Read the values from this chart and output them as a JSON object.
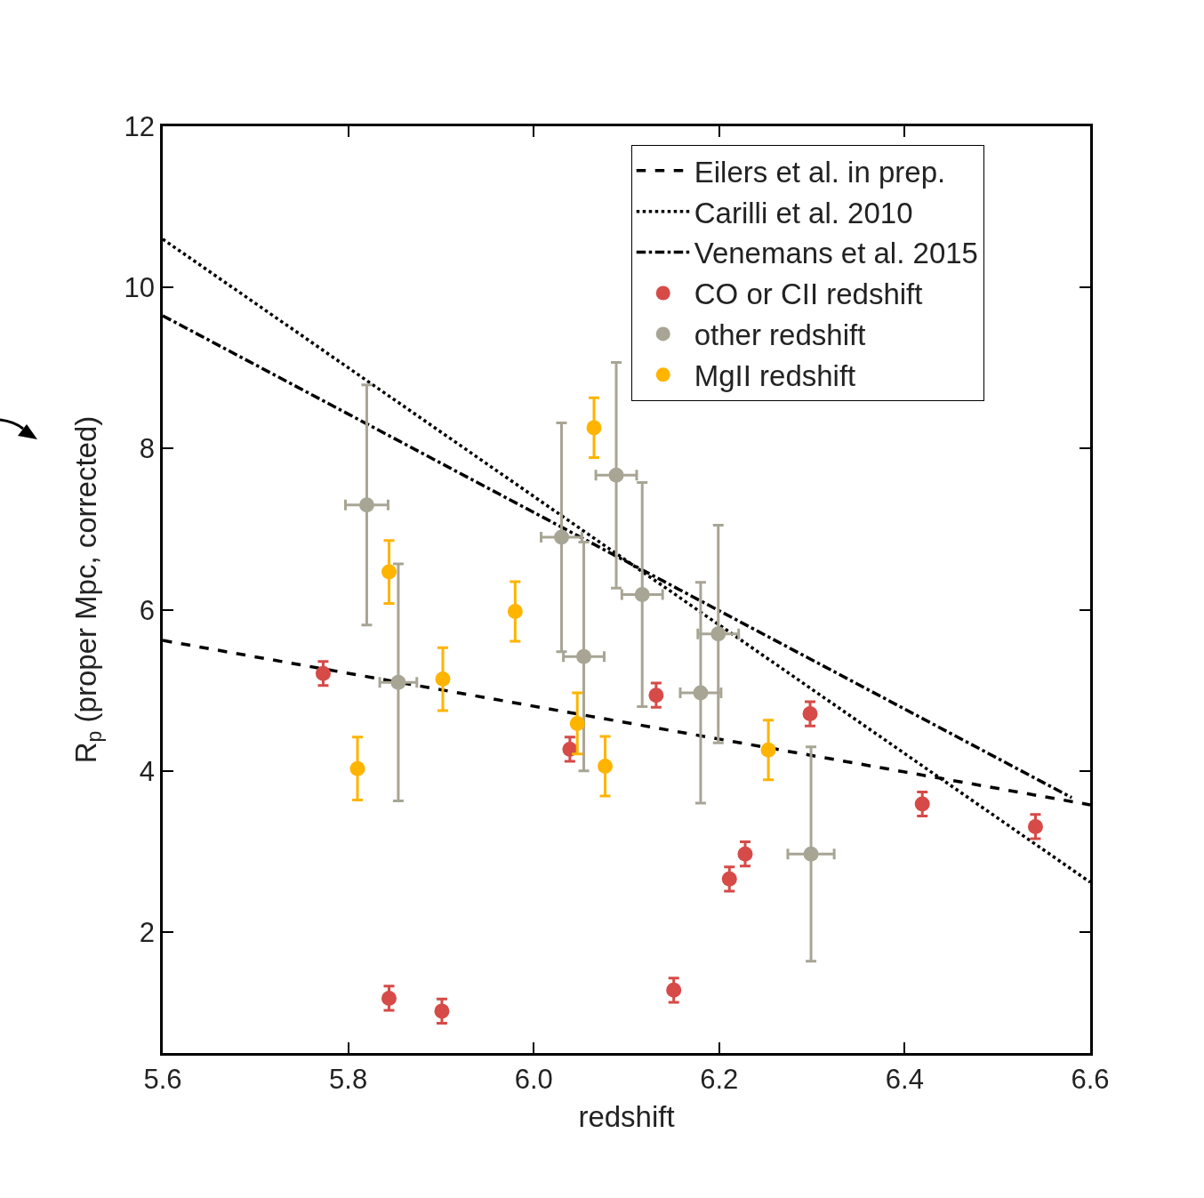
{
  "chart_data": {
    "type": "scatter",
    "xlabel": "redshift",
    "ylabel": "R$_{p}$ (proper Mpc, corrected)",
    "xlim": [
      5.6,
      6.6
    ],
    "ylim": [
      0.5,
      12
    ],
    "xticks": [
      {
        "value": 5.6,
        "label": "5.6"
      },
      {
        "value": 5.8,
        "label": "5.8"
      },
      {
        "value": 6.0,
        "label": "6.0"
      },
      {
        "value": 6.2,
        "label": "6.2"
      },
      {
        "value": 6.4,
        "label": "6.4"
      },
      {
        "value": 6.6,
        "label": "6.6"
      }
    ],
    "yticks": [
      2,
      4,
      6,
      8,
      10,
      12
    ],
    "grid": false,
    "legend": "top right",
    "marker": "circle",
    "series": [
      {
        "name": "Eilers et al. in prep.",
        "type": "line",
        "line_style": "dashed",
        "marker": "none",
        "color": "#000000",
        "x": [
          5.6,
          6.6
        ],
        "values": [
          5.62,
          3.58
        ]
      },
      {
        "name": "Carilli et al. 2010",
        "type": "line",
        "line_style": "dotted",
        "marker": "none",
        "color": "#000000",
        "x": [
          5.6,
          6.6
        ],
        "values": [
          10.6,
          2.62
        ]
      },
      {
        "name": "Venemans et al. 2015",
        "type": "line",
        "line_style": "dashdot",
        "marker": "none",
        "color": "#000000",
        "x": [
          5.6,
          6.58
        ],
        "values": [
          9.65,
          3.67
        ]
      },
      {
        "name": "CO or CII redshift",
        "color": "#d64a47",
        "x": [
          5.773,
          5.844,
          5.901,
          6.039,
          6.132,
          6.151,
          6.211,
          6.228,
          6.298,
          6.419,
          6.541
        ],
        "values": [
          5.21,
          1.18,
          1.02,
          4.27,
          4.94,
          1.28,
          2.66,
          2.97,
          4.71,
          3.59,
          3.31
        ],
        "errors": [
          0.15,
          0.15,
          0.15,
          0.15,
          0.15,
          0.15,
          0.15,
          0.15,
          0.15,
          0.15,
          0.15
        ]
      },
      {
        "name": "other redshift",
        "color": "#a8a595",
        "x": [
          5.82,
          5.854,
          6.03,
          6.054,
          6.089,
          6.117,
          6.18,
          6.199,
          6.299
        ],
        "values": [
          7.3,
          5.1,
          6.9,
          5.42,
          7.67,
          6.19,
          4.97,
          5.7,
          2.97
        ],
        "errors": [
          1.49,
          1.47,
          1.42,
          1.42,
          1.4,
          1.39,
          1.37,
          1.35,
          1.33
        ],
        "xerrors": [
          0.023,
          0.02,
          0.022,
          0.022,
          0.022,
          0.022,
          0.022,
          0.022,
          0.025
        ]
      },
      {
        "name": "MgII redshift",
        "color": "#ffb400",
        "x": [
          5.81,
          5.844,
          5.902,
          5.98,
          6.047,
          6.065,
          6.077,
          6.253
        ],
        "values": [
          4.03,
          6.47,
          5.14,
          5.98,
          4.59,
          8.26,
          4.06,
          4.26
        ],
        "errors": [
          0.39,
          0.39,
          0.39,
          0.37,
          0.38,
          0.37,
          0.37,
          0.37
        ]
      }
    ]
  }
}
